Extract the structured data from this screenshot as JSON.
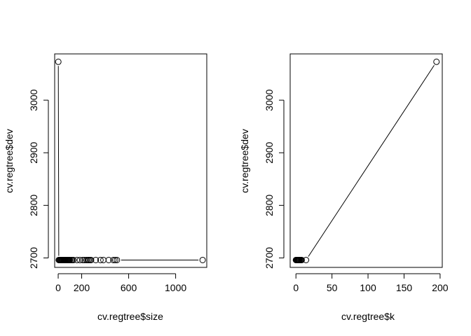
{
  "chart_data": [
    {
      "type": "line",
      "xlabel": "cv.regtree$size",
      "ylabel": "cv.regtree$dev",
      "xlim": [
        -30,
        1265
      ],
      "ylim": [
        2682,
        3088
      ],
      "xticks": [
        0,
        200,
        600,
        1000
      ],
      "yticks": [
        2700,
        2800,
        2900,
        3000
      ],
      "points": {
        "x": [
          1,
          5,
          10,
          15,
          20,
          25,
          30,
          35,
          40,
          45,
          50,
          55,
          60,
          65,
          70,
          75,
          80,
          85,
          90,
          95,
          100,
          110,
          120,
          130,
          160,
          185,
          210,
          225,
          240,
          250,
          260,
          270,
          280,
          320,
          360,
          385,
          430,
          470,
          485,
          500,
          1230
        ],
        "y": [
          3073,
          2696,
          2696,
          2696,
          2696,
          2696,
          2696,
          2696,
          2696,
          2696,
          2696,
          2696,
          2696,
          2696,
          2696,
          2696,
          2696,
          2696,
          2696,
          2696,
          2696,
          2696,
          2696,
          2696,
          2696,
          2696,
          2696,
          2696,
          2696,
          2696,
          2696,
          2696,
          2696,
          2696,
          2696,
          2696,
          2696,
          2696,
          2696,
          2696,
          2696
        ]
      }
    },
    {
      "type": "line",
      "xlabel": "cv.regtree$k",
      "ylabel": "cv.regtree$dev",
      "xlim": [
        -8,
        203
      ],
      "ylim": [
        2682,
        3088
      ],
      "xticks": [
        0,
        50,
        100,
        150,
        200
      ],
      "yticks": [
        2700,
        2800,
        2900,
        3000
      ],
      "points": {
        "x": [
          0,
          0.5,
          1,
          1.5,
          2,
          2.5,
          3,
          3.5,
          4,
          4.5,
          5,
          6,
          7,
          8,
          14,
          195
        ],
        "y": [
          2696,
          2696,
          2696,
          2696,
          2696,
          2696,
          2696,
          2696,
          2696,
          2696,
          2696,
          2696,
          2696,
          2696,
          2696,
          3073
        ]
      }
    }
  ]
}
